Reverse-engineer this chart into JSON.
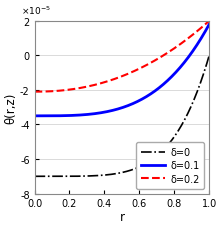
{
  "title": "",
  "xlabel": "r",
  "ylabel": "θ(r,z)",
  "xlim": [
    0,
    1
  ],
  "ylim": [
    -8e-05,
    2e-05
  ],
  "yticks": [
    -8e-05,
    -6e-05,
    -4e-05,
    -2e-05,
    0,
    2e-05
  ],
  "xticks": [
    0,
    0.2,
    0.4,
    0.6,
    0.8,
    1.0
  ],
  "curves": [
    {
      "label": "δ=0",
      "color": "#000000",
      "linestyle": "-.",
      "linewidth": 1.2,
      "a": -7e-05,
      "b": 7e-05,
      "power": 5.0
    },
    {
      "label": "δ=0.1",
      "color": "#0000ff",
      "linestyle": "-",
      "linewidth": 2.0,
      "a": -3.5e-05,
      "b": 5.3e-05,
      "power": 3.5
    },
    {
      "label": "δ=0.2",
      "color": "#ff0000",
      "linestyle": "--",
      "linewidth": 1.5,
      "a": -2.1e-05,
      "b": 4.1e-05,
      "power": 2.2
    }
  ],
  "legend_loc": "lower right",
  "background_color": "#ffffff",
  "axes_color": "#f0f0f0",
  "tick_fontsize": 7,
  "label_fontsize": 8.5,
  "legend_fontsize": 7
}
